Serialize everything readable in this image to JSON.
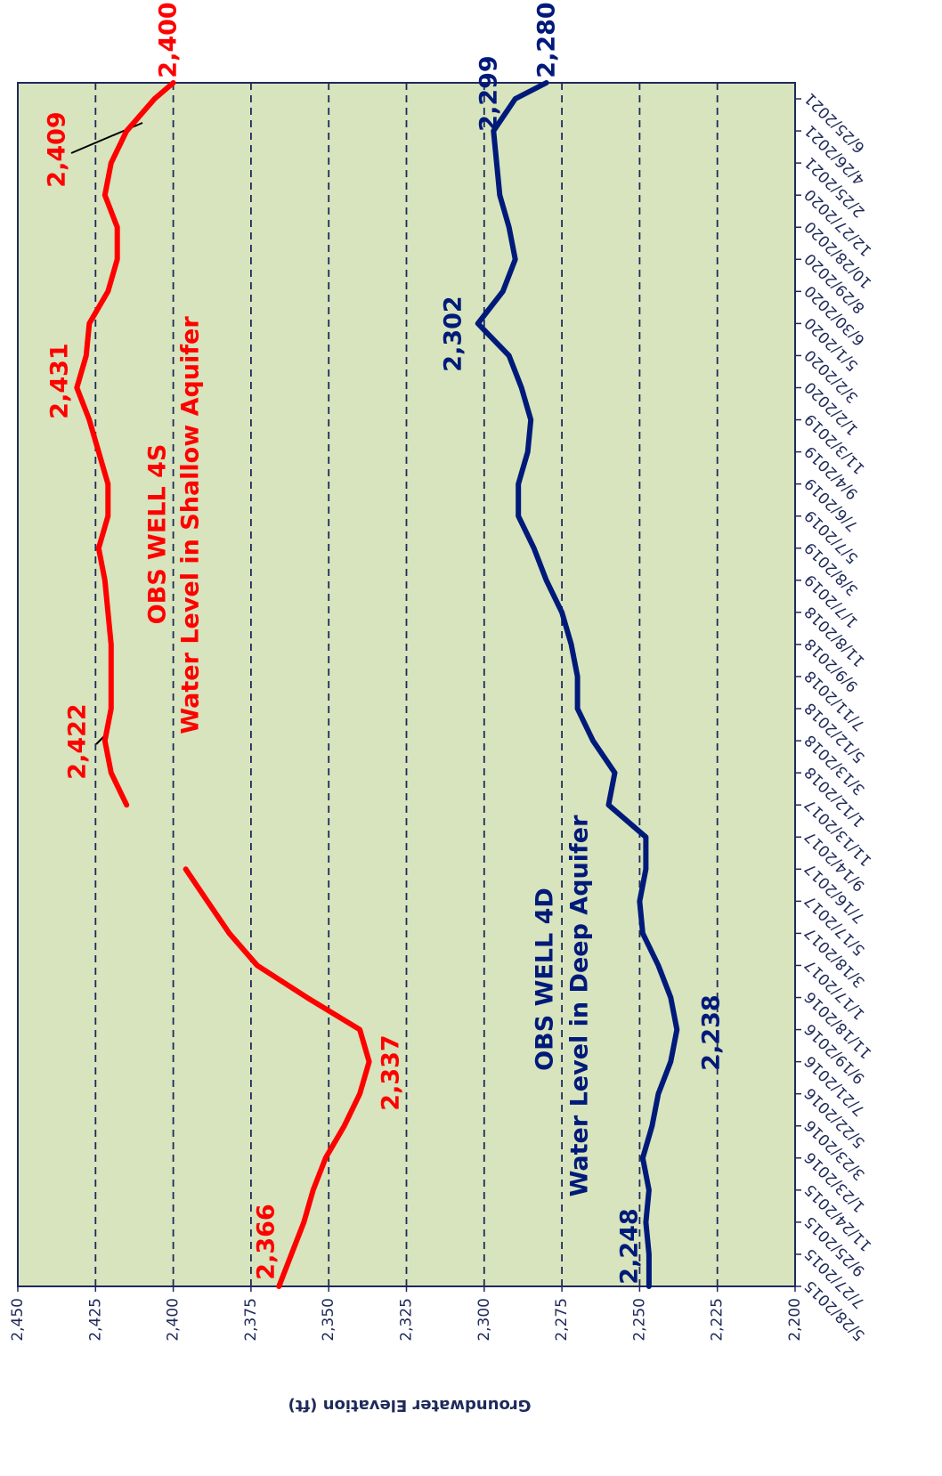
{
  "chart_data": {
    "type": "line",
    "y_label": "Groundwater Elevation (ft)",
    "x": [
      "5/28/2015",
      "7/27/2015",
      "9/25/2015",
      "11/24/2015",
      "1/23/2016",
      "3/23/2016",
      "5/22/2016",
      "7/21/2016",
      "9/19/2016",
      "11/18/2016",
      "1/17/2017",
      "3/18/2017",
      "5/17/2017",
      "7/16/2017",
      "9/14/2017",
      "11/13/2017",
      "1/12/2018",
      "3/13/2018",
      "5/12/2018",
      "7/11/2018",
      "9/9/2018",
      "11/8/2018",
      "1/7/2019",
      "3/8/2019",
      "5/7/2019",
      "7/6/2019",
      "9/4/2019",
      "11/3/2019",
      "1/2/2020",
      "3/2/2020",
      "5/1/2020",
      "6/30/2020",
      "8/29/2020",
      "10/28/2020",
      "12/27/2020",
      "2/25/2021",
      "4/26/2021",
      "6/25/2021",
      "7/25/2021"
    ],
    "series": [
      {
        "name": "OBS WELL 4S",
        "color": "#ff0000",
        "values": [
          2366,
          2362,
          2358,
          2355,
          2351,
          2345,
          2340,
          2337,
          2340,
          2357,
          2373,
          2382,
          2389,
          2396,
          null,
          2415,
          2420,
          2422,
          2420,
          2420,
          2420,
          2421,
          2422,
          2424,
          2421,
          2421,
          2424,
          2427,
          2431,
          2428,
          2427,
          2421,
          2418,
          2418,
          2422,
          2420,
          2415,
          2406,
          2400
        ]
      },
      {
        "name": "OBS WELL 4D",
        "color": "#001a7a",
        "values": [
          2247,
          2247,
          2248,
          2247,
          2249,
          2246,
          2244,
          2240,
          2238,
          2240,
          2244,
          2249,
          2250,
          2248,
          2248,
          2260,
          2258,
          2265,
          2270,
          2270,
          2272,
          2275,
          2280,
          2284,
          2289,
          2289,
          2286,
          2285,
          2288,
          2292,
          2302,
          2294,
          2290,
          2292,
          2295,
          2296,
          2297,
          2290,
          2280
        ]
      }
    ],
    "xlim": [
      "5/28/2015",
      "7/25/2021"
    ],
    "xticks": [
      "5/28/2015",
      "7/27/2015",
      "9/25/2015",
      "11/24/2015",
      "1/23/2016",
      "3/23/2016",
      "5/22/2016",
      "7/21/2016",
      "9/19/2016",
      "11/18/2016",
      "1/17/2017",
      "3/18/2017",
      "5/17/2017",
      "7/16/2017",
      "9/14/2017",
      "11/13/2017",
      "1/12/2018",
      "3/13/2018",
      "5/12/2018",
      "7/11/2018",
      "9/9/2018",
      "11/8/2018",
      "1/7/2019",
      "3/8/2019",
      "5/7/2019",
      "7/6/2019",
      "9/4/2019",
      "11/3/2019",
      "1/2/2020",
      "3/2/2020",
      "5/1/2020",
      "6/30/2020",
      "8/29/2020",
      "10/28/2020",
      "12/27/2020",
      "2/25/2021",
      "4/26/2021",
      "6/25/2021"
    ],
    "ylim": [
      2200,
      2450
    ],
    "yticks": [
      {
        "value": 2200,
        "label": "2,200"
      },
      {
        "value": 2225,
        "label": "2,225"
      },
      {
        "value": 2250,
        "label": "2,250"
      },
      {
        "value": 2275,
        "label": "2,275"
      },
      {
        "value": 2300,
        "label": "2,300"
      },
      {
        "value": 2325,
        "label": "2,325"
      },
      {
        "value": 2350,
        "label": "2,350"
      },
      {
        "value": 2375,
        "label": "2,375"
      },
      {
        "value": 2400,
        "label": "2,400"
      },
      {
        "value": 2425,
        "label": "2,425"
      },
      {
        "value": 2450,
        "label": "2,450"
      }
    ],
    "grid": true,
    "annotations": [
      {
        "text": "2,400",
        "color": "#ff0000"
      },
      {
        "text": "2,409",
        "color": "#ff0000"
      },
      {
        "text": "2,431",
        "color": "#ff0000"
      },
      {
        "text": "2,422",
        "color": "#ff0000"
      },
      {
        "text": "2,337",
        "color": "#ff0000"
      },
      {
        "text": "2,366",
        "color": "#ff0000"
      },
      {
        "text": "Water Level in Shallow Aquifer",
        "color": "#ff0000"
      },
      {
        "text": "2,280",
        "color": "#001a7a"
      },
      {
        "text": "2,299",
        "color": "#001a7a"
      },
      {
        "text": "2,302",
        "color": "#001a7a"
      },
      {
        "text": "2,238",
        "color": "#001a7a"
      },
      {
        "text": "2,248",
        "color": "#001a7a"
      },
      {
        "text": "Water Level in Deep Aquifer",
        "color": "#001a7a"
      }
    ]
  }
}
